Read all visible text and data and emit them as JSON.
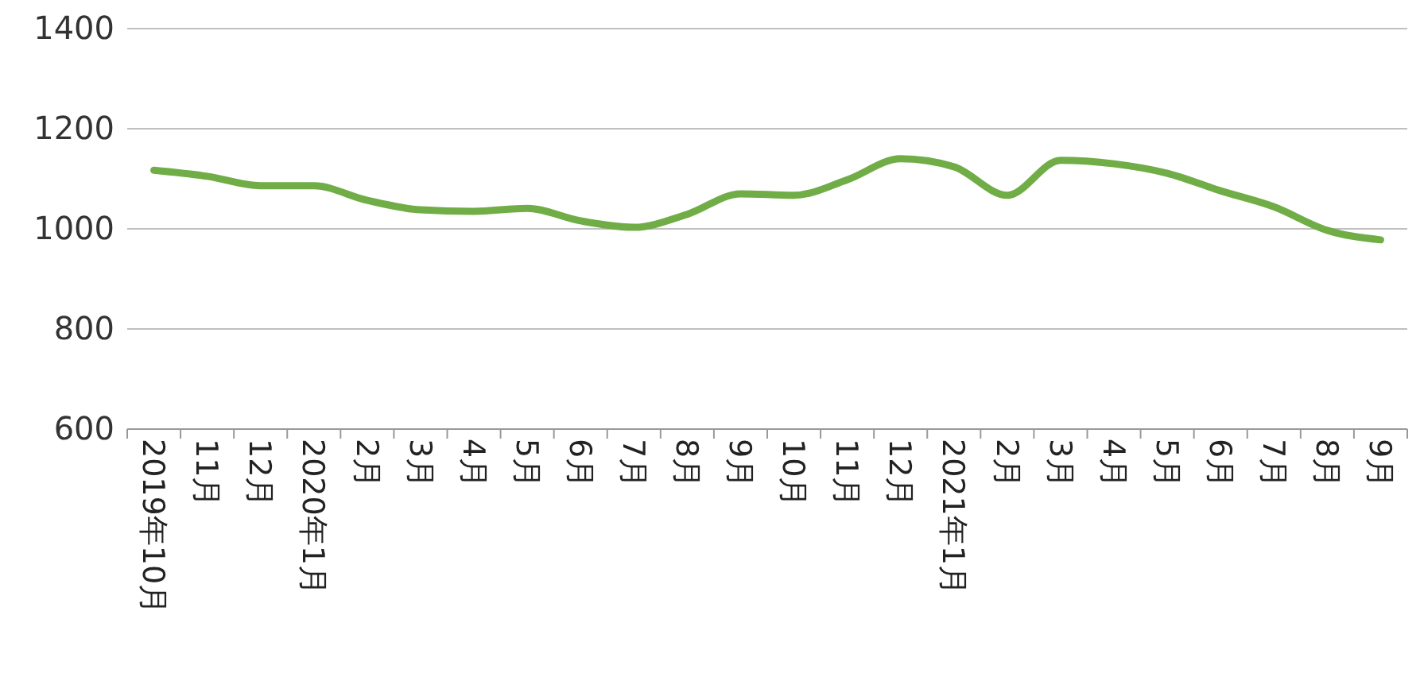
{
  "chart_data": {
    "type": "line",
    "categories": [
      "2019年10月",
      "11月",
      "12月",
      "2020年1月",
      "2月",
      "3月",
      "4月",
      "5月",
      "6月",
      "7月",
      "8月",
      "9月",
      "10月",
      "11月",
      "12月",
      "2021年1月",
      "2月",
      "3月",
      "4月",
      "5月",
      "6月",
      "7月",
      "8月",
      "9月"
    ],
    "series": [
      {
        "color": "#70ad47",
        "values": [
          1117,
          1105,
          1086,
          1086,
          1057,
          1038,
          1035,
          1041,
          1016,
          1003,
          1029,
          1070,
          1067,
          1098,
          1140,
          1124,
          1067,
          1137,
          1130,
          1111,
          1076,
          1044,
          997,
          978
        ]
      }
    ],
    "ylim": [
      600,
      1400
    ],
    "yticks": [
      600,
      800,
      1000,
      1200,
      1400
    ],
    "grid": "y",
    "marker": "none",
    "line_style": "solid"
  }
}
